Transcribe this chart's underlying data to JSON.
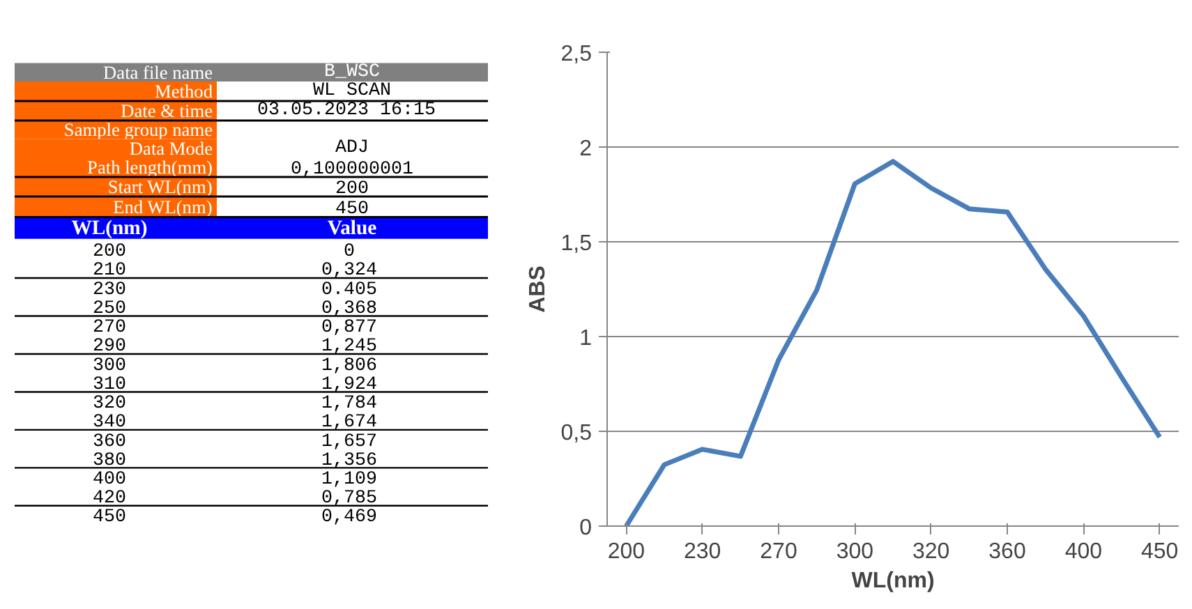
{
  "chart_data": {
    "type": "line",
    "xlabel": "WL(nm)",
    "ylabel": "ABS",
    "categories": [
      "200",
      null,
      "230",
      null,
      "270",
      null,
      "300",
      null,
      "320",
      null,
      "360",
      null,
      "400",
      null,
      "450"
    ],
    "series": [
      {
        "color": "#4a7ebb",
        "values": [
          0,
          0.324,
          0.405,
          0.368,
          0.877,
          1.245,
          1.806,
          1.924,
          1.784,
          1.674,
          1.657,
          1.356,
          1.109,
          0.785,
          0.469
        ]
      }
    ],
    "value_labels": [
      "0",
      "0,324",
      "0.405",
      "0,368",
      "0,877",
      "1,245",
      "1,806",
      "1,924",
      "1,784",
      "1,674",
      "1,657",
      "1,356",
      "1,109",
      "0,785",
      "0,469"
    ],
    "ylim": [
      0,
      2.5
    ],
    "yticks": [
      0,
      {
        "value": 0.5,
        "label": "0,5"
      },
      1,
      {
        "value": 1.5,
        "label": "1,5"
      },
      2,
      {
        "value": 2.5,
        "label": "2,5"
      }
    ],
    "grid": "y",
    "marker": "none",
    "line_style": "solid",
    "annotations": [
      "Data file name",
      "B_WSC",
      "Method",
      "WL SCAN",
      "Date & time",
      "03.05.2023  16:15",
      "Sample group name",
      "Data Mode",
      "ADJ",
      "Path length(mm)",
      "0,100000001",
      "Start WL(nm)",
      "200",
      "End WL(nm)",
      "450",
      "WL(nm)",
      "Value",
      "200",
      "210",
      "230",
      "250",
      "270",
      "290",
      "300",
      "310",
      "320",
      "340",
      "360",
      "380",
      "400",
      "420",
      "450"
    ]
  }
}
